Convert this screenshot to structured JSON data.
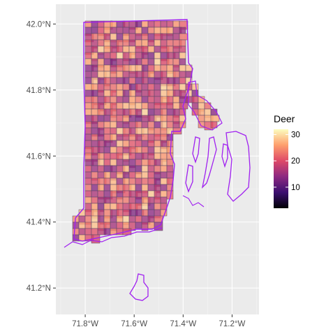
{
  "chart_data": {
    "type": "heatmap",
    "title": "",
    "xlabel": "",
    "ylabel": "",
    "x_ticks": [
      {
        "value": -71.8,
        "label": "71.8°W"
      },
      {
        "value": -71.6,
        "label": "71.6°W"
      },
      {
        "value": -71.4,
        "label": "71.4°W"
      },
      {
        "value": -71.2,
        "label": "71.2°W"
      }
    ],
    "y_ticks": [
      {
        "value": 42.0,
        "label": "42.0°N"
      },
      {
        "value": 41.8,
        "label": "41.8°N"
      },
      {
        "value": 41.6,
        "label": "41.6°N"
      },
      {
        "value": 41.4,
        "label": "41.4°N"
      },
      {
        "value": 41.2,
        "label": "41.2°N"
      }
    ],
    "xlim": [
      -71.92,
      -71.09
    ],
    "ylim": [
      41.12,
      42.06
    ],
    "grid": true,
    "legend": {
      "title": "Deer",
      "placement": "right",
      "type": "colorbar",
      "range": [
        2,
        32
      ],
      "ticks": [
        {
          "value": 10,
          "label": "10"
        },
        {
          "value": 20,
          "label": "20"
        },
        {
          "value": 30,
          "label": "30"
        }
      ],
      "palette": [
        "#000004",
        "#3b0f70",
        "#8c2981",
        "#de4968",
        "#fe9f6d",
        "#fcfdbf"
      ]
    },
    "colors": {
      "panel_background": "#ebebeb",
      "grid_major": "#ffffff",
      "grid_minor": "#f5f5f5",
      "outline": "#a020f0",
      "cell_border": "#5a4a6a"
    }
  }
}
